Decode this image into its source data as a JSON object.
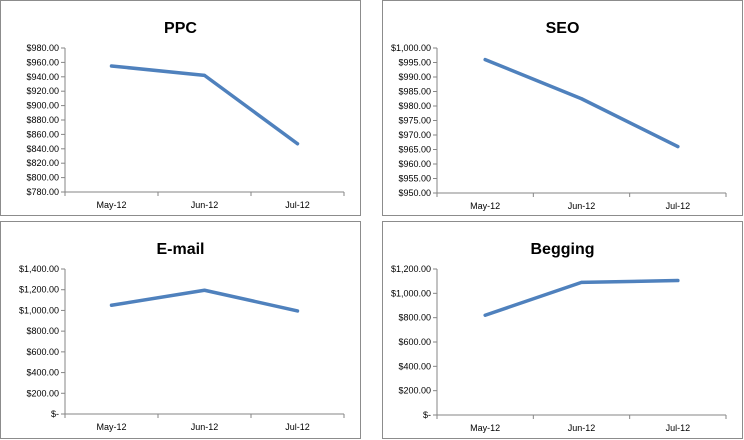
{
  "chart_data": [
    {
      "type": "line",
      "title": "PPC",
      "categories": [
        "May-12",
        "Jun-12",
        "Jul-12"
      ],
      "series": [
        {
          "values": [
            955,
            942,
            847
          ]
        }
      ],
      "ylim": [
        780,
        980
      ],
      "yticks": [
        780,
        800,
        820,
        840,
        860,
        880,
        900,
        920,
        940,
        960,
        980
      ],
      "ytick_labels": [
        "$780.00",
        "$800.00",
        "$820.00",
        "$840.00",
        "$860.00",
        "$880.00",
        "$900.00",
        "$920.00",
        "$940.00",
        "$960.00",
        "$980.00"
      ],
      "grid": false,
      "color": "#4f81bd"
    },
    {
      "type": "line",
      "title": "SEO",
      "categories": [
        "May-12",
        "Jun-12",
        "Jul-12"
      ],
      "series": [
        {
          "values": [
            996,
            982.5,
            966
          ]
        }
      ],
      "ylim": [
        950,
        1000
      ],
      "yticks": [
        950,
        955,
        960,
        965,
        970,
        975,
        980,
        985,
        990,
        995,
        1000
      ],
      "ytick_labels": [
        "$950.00",
        "$955.00",
        "$960.00",
        "$965.00",
        "$970.00",
        "$975.00",
        "$980.00",
        "$985.00",
        "$990.00",
        "$995.00",
        "$1,000.00"
      ],
      "grid": false,
      "color": "#4f81bd"
    },
    {
      "type": "line",
      "title": "E-mail",
      "categories": [
        "May-12",
        "Jun-12",
        "Jul-12"
      ],
      "series": [
        {
          "values": [
            1050,
            1195,
            995
          ]
        }
      ],
      "ylim": [
        0,
        1400
      ],
      "yticks": [
        0,
        200,
        400,
        600,
        800,
        1000,
        1200,
        1400
      ],
      "ytick_labels": [
        "$-",
        "$200.00",
        "$400.00",
        "$600.00",
        "$800.00",
        "$1,000.00",
        "$1,200.00",
        "$1,400.00"
      ],
      "grid": false,
      "color": "#4f81bd"
    },
    {
      "type": "line",
      "title": "Begging",
      "categories": [
        "May-12",
        "Jun-12",
        "Jul-12"
      ],
      "series": [
        {
          "values": [
            820,
            1090,
            1105
          ]
        }
      ],
      "ylim": [
        0,
        1200
      ],
      "yticks": [
        0,
        200,
        400,
        600,
        800,
        1000,
        1200
      ],
      "ytick_labels": [
        "$-",
        "$200.00",
        "$400.00",
        "$600.00",
        "$800.00",
        "$1,000.00",
        "$1,200.00"
      ],
      "grid": false,
      "color": "#4f81bd"
    }
  ]
}
